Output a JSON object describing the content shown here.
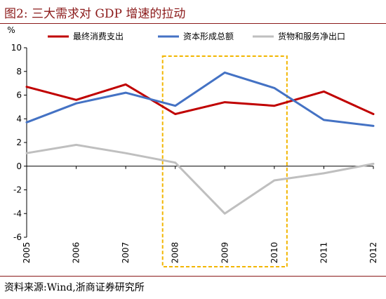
{
  "header": {
    "title": "图2:   三大需求对 GDP 增速的拉动"
  },
  "footer": {
    "source": "资料来源:Wind,浙商证券研究所"
  },
  "chart_data": {
    "type": "line",
    "title": "",
    "xlabel": "",
    "ylabel": "%",
    "x": [
      "2005",
      "2006",
      "2007",
      "2008",
      "2009",
      "2010",
      "2011",
      "2012"
    ],
    "ylim": [
      -6,
      10
    ],
    "yticks": [
      -6,
      -4,
      -2,
      0,
      2,
      4,
      6,
      8,
      10
    ],
    "grid": false,
    "legend_position": "top",
    "highlight_range": [
      "2008",
      "2010"
    ],
    "series": [
      {
        "name": "最终消费支出",
        "color": "#c00000",
        "values": [
          6.7,
          5.6,
          6.9,
          4.4,
          5.4,
          5.1,
          6.3,
          4.4
        ]
      },
      {
        "name": "资本形成总额",
        "color": "#4472c4",
        "values": [
          3.7,
          5.3,
          6.2,
          5.1,
          7.9,
          6.6,
          3.9,
          3.4
        ]
      },
      {
        "name": "货物和服务净出口",
        "color": "#bfbfbf",
        "values": [
          1.1,
          1.8,
          1.1,
          0.3,
          -4.0,
          -1.2,
          -0.6,
          0.2
        ]
      }
    ]
  }
}
